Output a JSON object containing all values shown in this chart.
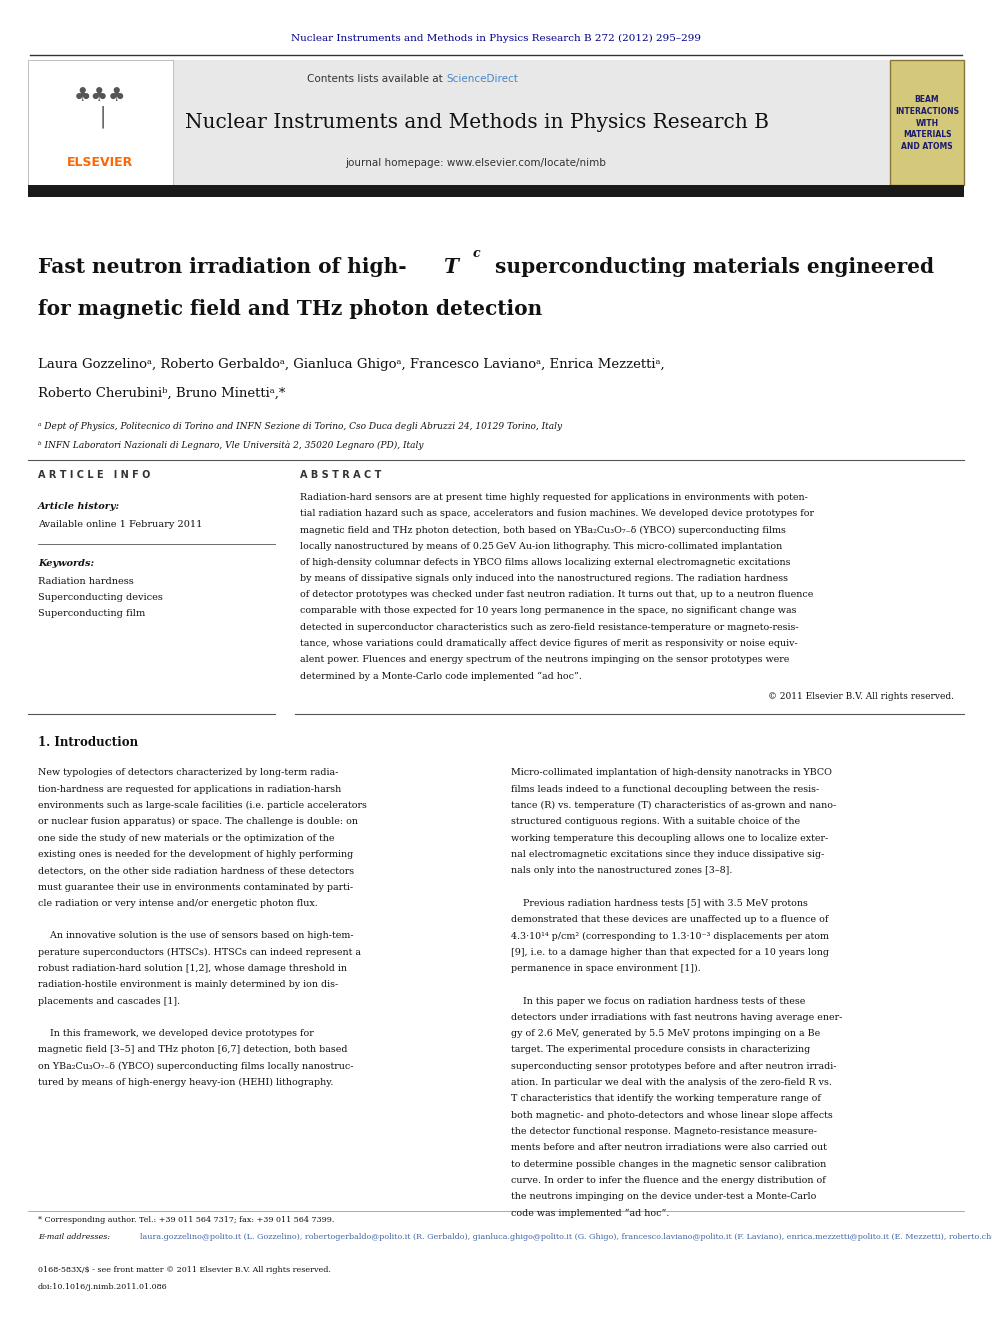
{
  "page_width": 9.92,
  "page_height": 13.23,
  "bg_color": "#ffffff",
  "top_journal_ref": "Nuclear Instruments and Methods in Physics Research B 272 (2012) 295–299",
  "top_journal_ref_color": "#00008B",
  "header_bg": "#e8e8e8",
  "header_journal_name": "Nuclear Instruments and Methods in Physics Research B",
  "header_homepage": "journal homepage: www.elsevier.com/locate/nimb",
  "elsevier_color": "#FF6600",
  "beam_box_text": "BEAM\nINTERACTIONS\nWITH\nMATERIALS\nAND ATOMS",
  "beam_box_bg": "#d4c87a",
  "beam_box_border": "#8B7536",
  "dark_bar_color": "#1a1a1a",
  "article_title_line2": "for magnetic field and THz photon detection",
  "authors": "Laura Gozzelinoᵃ, Roberto Gerbaldoᵃ, Gianluca Ghigoᵃ, Francesco Lavianoᵃ, Enrica Mezzettiᵃ,",
  "authors2": "Roberto Cherubiniᵇ, Bruno Minettiᵃ,*",
  "affil_a": "ᵃ Dept of Physics, Politecnico di Torino and INFN Sezione di Torino, Cso Duca degli Abruzzi 24, 10129 Torino, Italy",
  "affil_b": "ᵇ INFN Laboratori Nazionali di Legnaro, Vle Università 2, 35020 Legnaro (PD), Italy",
  "article_info_title": "ARTICLE INFO",
  "article_history_label": "Article history:",
  "available_online": "Available online 1 February 2011",
  "keywords_label": "Keywords:",
  "kw1": "Radiation hardness",
  "kw2": "Superconducting devices",
  "kw3": "Superconducting film",
  "abstract_title": "ABSTRACT",
  "abstract_text": "Radiation-hard sensors are at present time highly requested for applications in environments with potential radiation hazard such as space, accelerators and fusion machines. We developed device prototypes for magnetic field and THz photon detection, both based on YBa₂Cu₃O₇₋δ (YBCO) superconducting films locally nanostructured by means of 0.25 GeV Au-ion lithography. This micro-collimated implantation of high-density columnar defects in YBCO films allows localizing external electromagnetic excitations by means of dissipative signals only induced into the nanostructured regions. The radiation hardness of detector prototypes was checked under fast neutron radiation. It turns out that, up to a neutron fluence comparable with those expected for 10 years long permanence in the space, no significant change was detected in superconductor characteristics such as zero-field resistance-temperature or magneto-resistance, whose variations could dramatically affect device figures of merit as responsivity or noise equivalent power. Fluences and energy spectrum of the neutrons impinging on the sensor prototypes were determined by a Monte-Carlo code implemented “ad hoc”.",
  "copyright": "© 2011 Elsevier B.V. All rights reserved.",
  "intro_title": "1. Introduction",
  "intro_col1_lines": [
    "New typologies of detectors characterized by long-term radia-",
    "tion-hardness are requested for applications in radiation-harsh",
    "environments such as large-scale facilities (i.e. particle accelerators",
    "or nuclear fusion apparatus) or space. The challenge is double: on",
    "one side the study of new materials or the optimization of the",
    "existing ones is needed for the development of highly performing",
    "detectors, on the other side radiation hardness of these detectors",
    "must guarantee their use in environments contaminated by parti-",
    "cle radiation or very intense and/or energetic photon flux.",
    "",
    "    An innovative solution is the use of sensors based on high-tem-",
    "perature superconductors (HTSCs). HTSCs can indeed represent a",
    "robust radiation-hard solution [1,2], whose damage threshold in",
    "radiation-hostile environment is mainly determined by ion dis-",
    "placements and cascades [1].",
    "",
    "    In this framework, we developed device prototypes for",
    "magnetic field [3–5] and THz photon [6,7] detection, both based",
    "on YBa₂Cu₃O₇₋δ (YBCO) superconducting films locally nanostruc-",
    "tured by means of high-energy heavy-ion (HEHI) lithography."
  ],
  "intro_col2_lines": [
    "Micro-collimated implantation of high-density nanotracks in YBCO",
    "films leads indeed to a functional decoupling between the resis-",
    "tance (R) vs. temperature (T) characteristics of as-grown and nano-",
    "structured contiguous regions. With a suitable choice of the",
    "working temperature this decoupling allows one to localize exter-",
    "nal electromagnetic excitations since they induce dissipative sig-",
    "nals only into the nanostructured zones [3–8].",
    "",
    "    Previous radiation hardness tests [5] with 3.5 MeV protons",
    "demonstrated that these devices are unaffected up to a fluence of",
    "4.3·10¹⁴ p/cm² (corresponding to 1.3·10⁻³ displacements per atom",
    "[9], i.e. to a damage higher than that expected for a 10 years long",
    "permanence in space environment [1]).",
    "",
    "    In this paper we focus on radiation hardness tests of these",
    "detectors under irradiations with fast neutrons having average ener-",
    "gy of 2.6 MeV, generated by 5.5 MeV protons impinging on a Be",
    "target. The experimental procedure consists in characterizing",
    "superconducting sensor prototypes before and after neutron irradi-",
    "ation. In particular we deal with the analysis of the zero-field R vs.",
    "T characteristics that identify the working temperature range of",
    "both magnetic- and photo-detectors and whose linear slope affects",
    "the detector functional response. Magneto-resistance measure-",
    "ments before and after neutron irradiations were also carried out",
    "to determine possible changes in the magnetic sensor calibration",
    "curve. In order to infer the fluence and the energy distribution of",
    "the neutrons impinging on the device under-test a Monte-Carlo",
    "code was implemented “ad hoc”."
  ],
  "footer_corr": "* Corresponding author. Tel.: +39 011 564 7317; fax: +39 011 564 7399.",
  "footer_emails": "laura.gozzelino@polito.it (L. Gozzelino), robertogerbaldo@polito.it (R. Gerbaldo), gianluca.ghigo@polito.it (G. Ghigo), francesco.laviano@polito.it (F. Laviano), enrica.mezzetti@polito.it (E. Mezzetti), roberto.cherubini@lnl.infn.it (R. Cherubini), bruno.minetti@polito.it (B. Minetti).",
  "footer_issn": "0168-583X/$ - see front matter © 2011 Elsevier B.V. All rights reserved.",
  "footer_doi": "doi:10.1016/j.nimb.2011.01.086"
}
